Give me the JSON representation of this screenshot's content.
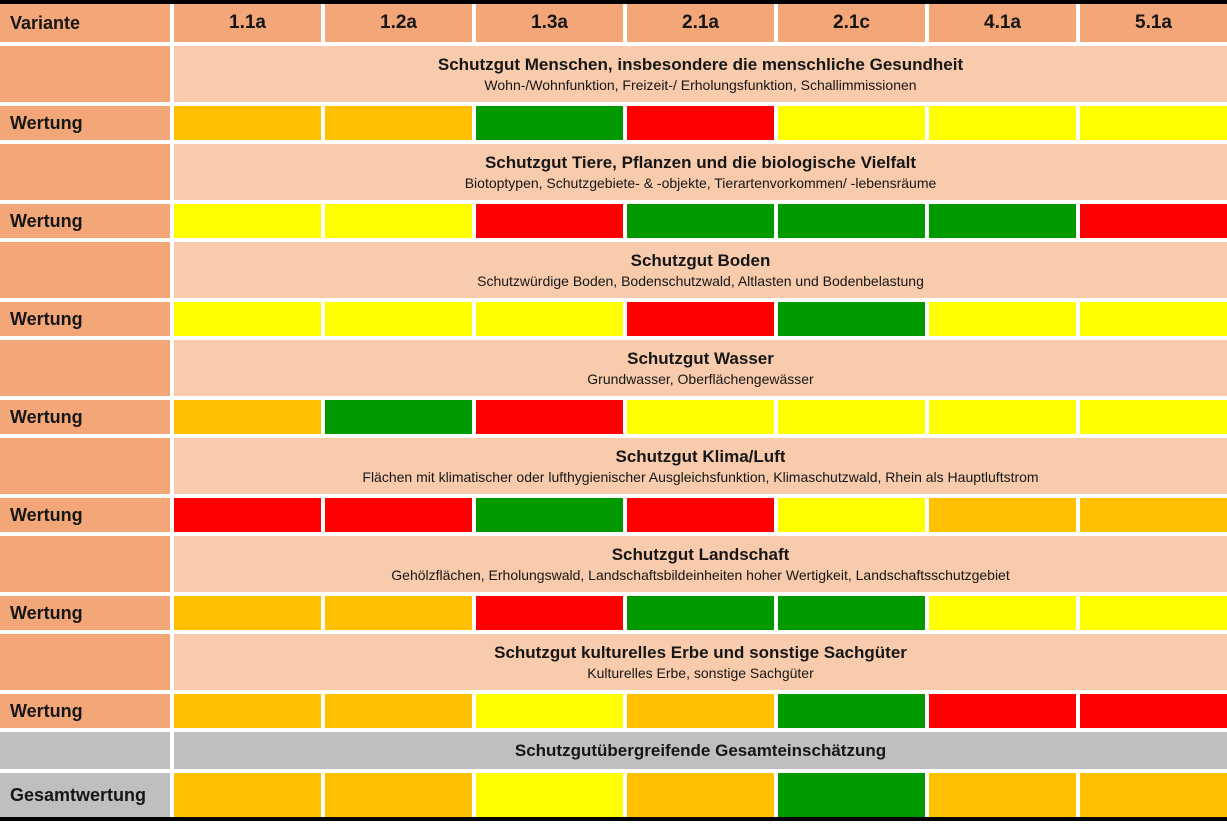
{
  "table": {
    "corner_label": "Variante",
    "row_label": "Wertung",
    "variants": [
      "1.1a",
      "1.2a",
      "1.3a",
      "2.1a",
      "2.1c",
      "4.1a",
      "5.1a"
    ],
    "sections": [
      {
        "title": "Schutzgut Menschen, insbesondere die menschliche Gesundheit",
        "subtitle": "Wohn-/Wohnfunktion, Freizeit-/ Erholungsfunktion, Schallimmissionen",
        "ratings": [
          "orange",
          "orange",
          "green",
          "red",
          "yellow",
          "yellow",
          "yellow"
        ]
      },
      {
        "title": "Schutzgut Tiere, Pflanzen und die biologische Vielfalt",
        "subtitle": "Biotoptypen, Schutzgebiete- & -objekte, Tierartenvorkommen/ -lebensräume",
        "ratings": [
          "yellow",
          "yellow",
          "red",
          "green",
          "green",
          "green",
          "red"
        ]
      },
      {
        "title": "Schutzgut Boden",
        "subtitle": "Schutzwürdige Boden, Bodenschutzwald, Altlasten und Bodenbelastung",
        "ratings": [
          "yellow",
          "yellow",
          "yellow",
          "red",
          "green",
          "yellow",
          "yellow"
        ]
      },
      {
        "title": "Schutzgut Wasser",
        "subtitle": "Grundwasser, Oberflächengewässer",
        "ratings": [
          "orange",
          "green",
          "red",
          "yellow",
          "yellow",
          "yellow",
          "yellow"
        ]
      },
      {
        "title": "Schutzgut Klima/Luft",
        "subtitle": "Flächen mit klimatischer oder lufthygienischer Ausgleichsfunktion, Klimaschutzwald, Rhein als Hauptluftstrom",
        "ratings": [
          "red",
          "red",
          "green",
          "red",
          "yellow",
          "orange",
          "orange"
        ]
      },
      {
        "title": "Schutzgut Landschaft",
        "subtitle": "Gehölzflächen, Erholungswald, Landschaftsbildeinheiten hoher Wertigkeit, Landschaftsschutzgebiet",
        "ratings": [
          "orange",
          "orange",
          "red",
          "green",
          "green",
          "yellow",
          "yellow"
        ]
      },
      {
        "title": "Schutzgut kulturelles Erbe und sonstige Sachgüter",
        "subtitle": "Kulturelles Erbe, sonstige Sachgüter",
        "ratings": [
          "orange",
          "orange",
          "yellow",
          "orange",
          "green",
          "red",
          "red"
        ]
      }
    ],
    "summary": {
      "title": "Schutzgutübergreifende Gesamteinschätzung",
      "row_label": "Gesamtwertung",
      "ratings": [
        "orange",
        "orange",
        "yellow",
        "orange",
        "green",
        "orange",
        "orange"
      ]
    },
    "colors": {
      "header_bg": "#F3A678",
      "section_bg": "#F8CBAD",
      "summary_bg": "#BFBFBF",
      "green": "#009A00",
      "yellow": "#FFFF00",
      "orange": "#FFC000",
      "red": "#FF0000"
    }
  },
  "chart_data": {
    "type": "table",
    "columns": [
      "Variante",
      "1.1a",
      "1.2a",
      "1.3a",
      "2.1a",
      "2.1c",
      "4.1a",
      "5.1a"
    ],
    "color_scale": [
      "green",
      "yellow",
      "orange",
      "red"
    ],
    "rows": [
      {
        "label": "Schutzgut Menschen, insbesondere die menschliche Gesundheit",
        "criteria": "Wohn-/Wohnfunktion, Freizeit-/ Erholungsfunktion, Schallimmissionen",
        "ratings": [
          "orange",
          "orange",
          "green",
          "red",
          "yellow",
          "yellow",
          "yellow"
        ]
      },
      {
        "label": "Schutzgut Tiere, Pflanzen und die biologische Vielfalt",
        "criteria": "Biotoptypen, Schutzgebiete- & -objekte, Tierartenvorkommen/ -lebensräume",
        "ratings": [
          "yellow",
          "yellow",
          "red",
          "green",
          "green",
          "green",
          "red"
        ]
      },
      {
        "label": "Schutzgut Boden",
        "criteria": "Schutzwürdige Boden, Bodenschutzwald, Altlasten und Bodenbelastung",
        "ratings": [
          "yellow",
          "yellow",
          "yellow",
          "red",
          "green",
          "yellow",
          "yellow"
        ]
      },
      {
        "label": "Schutzgut Wasser",
        "criteria": "Grundwasser, Oberflächengewässer",
        "ratings": [
          "orange",
          "green",
          "red",
          "yellow",
          "yellow",
          "yellow",
          "yellow"
        ]
      },
      {
        "label": "Schutzgut Klima/Luft",
        "criteria": "Flächen mit klimatischer oder lufthygienischer Ausgleichsfunktion, Klimaschutzwald, Rhein als Hauptluftstrom",
        "ratings": [
          "red",
          "red",
          "green",
          "red",
          "yellow",
          "orange",
          "orange"
        ]
      },
      {
        "label": "Schutzgut Landschaft",
        "criteria": "Gehölzflächen, Erholungswald, Landschaftsbildeinheiten hoher Wertigkeit, Landschaftsschutzgebiet",
        "ratings": [
          "orange",
          "orange",
          "red",
          "green",
          "green",
          "yellow",
          "yellow"
        ]
      },
      {
        "label": "Schutzgut kulturelles Erbe und sonstige Sachgüter",
        "criteria": "Kulturelles Erbe, sonstige Sachgüter",
        "ratings": [
          "orange",
          "orange",
          "yellow",
          "orange",
          "green",
          "red",
          "red"
        ]
      },
      {
        "label": "Schutzgutübergreifende Gesamteinschätzung",
        "criteria": "Gesamtwertung",
        "ratings": [
          "orange",
          "orange",
          "yellow",
          "orange",
          "green",
          "orange",
          "orange"
        ]
      }
    ]
  }
}
